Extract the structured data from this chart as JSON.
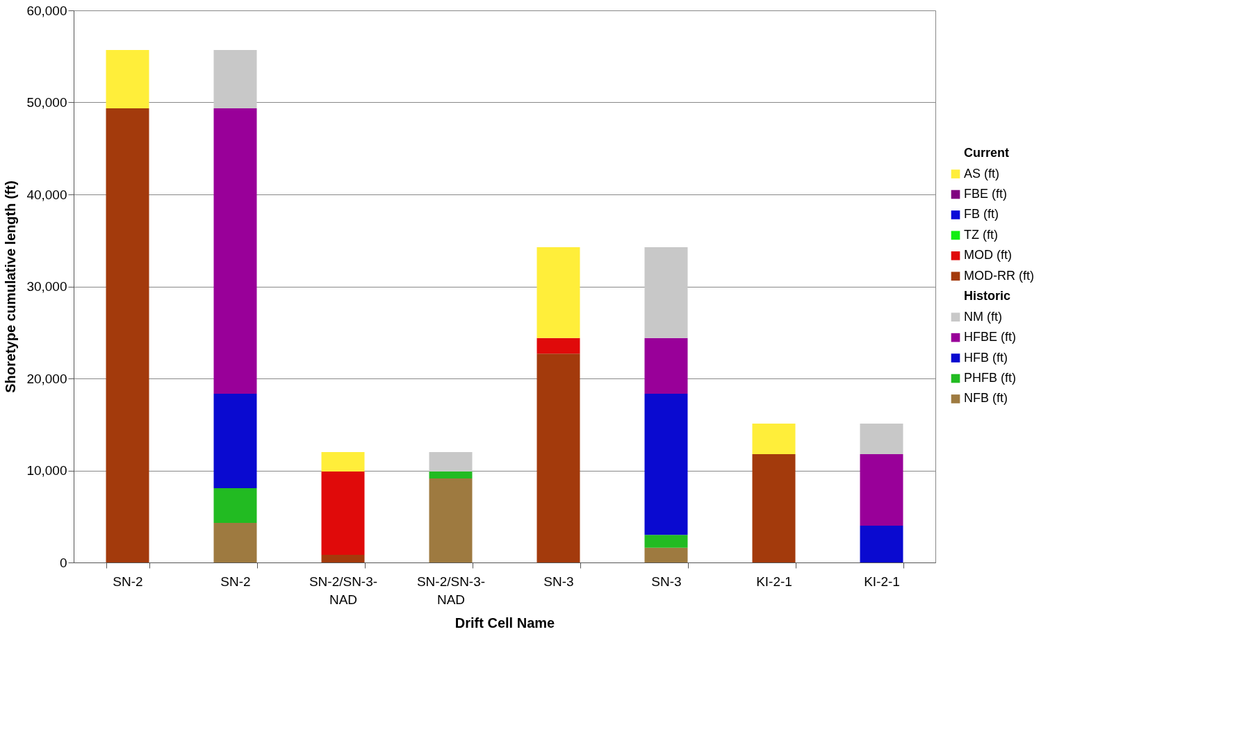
{
  "chart_data": {
    "type": "bar",
    "stacked": true,
    "xlabel": "Drift Cell Name",
    "ylabel": "Shoretype cumulative length (ft)",
    "categories": [
      "SN-2",
      "SN-2",
      "SN-2/SN-3-NAD",
      "SN-2/SN-3-NAD",
      "SN-3",
      "SN-3",
      "KI-2-1",
      "KI-2-1"
    ],
    "series": [
      {
        "name": "MOD-RR (ft)",
        "color": "#a33a0c",
        "values": [
          49350,
          null,
          830,
          null,
          22700,
          null,
          11770,
          null
        ]
      },
      {
        "name": "MOD (ft)",
        "color": "#e00a0a",
        "values": [
          null,
          null,
          9060,
          null,
          1700,
          null,
          null,
          null
        ]
      },
      {
        "name": "TZ (ft)",
        "color": "#11ee11",
        "values": [
          null,
          null,
          null,
          null,
          null,
          null,
          null,
          null
        ]
      },
      {
        "name": "FB (ft)",
        "color": "#0a0ad8",
        "values": [
          null,
          null,
          null,
          null,
          null,
          null,
          null,
          null
        ]
      },
      {
        "name": "FBE (ft)",
        "color": "#800080",
        "values": [
          null,
          null,
          null,
          null,
          null,
          null,
          null,
          null
        ]
      },
      {
        "name": "AS (ft)",
        "color": "#ffee3a",
        "values": [
          6350,
          null,
          2110,
          null,
          9860,
          null,
          3330,
          null
        ]
      },
      {
        "name": "NFB (ft)",
        "color": "#9e7a40",
        "values": [
          null,
          4300,
          null,
          9130,
          null,
          1600,
          null,
          null
        ]
      },
      {
        "name": "PHFB (ft)",
        "color": "#22bb22",
        "values": [
          null,
          3780,
          null,
          760,
          null,
          1400,
          null,
          null
        ]
      },
      {
        "name": "HFB (ft)",
        "color": "#0a0ad0",
        "values": [
          null,
          10260,
          null,
          null,
          null,
          15340,
          null,
          4000
        ]
      },
      {
        "name": "HFBE (ft)",
        "color": "#990099",
        "values": [
          null,
          31020,
          null,
          null,
          null,
          6060,
          null,
          7770
        ]
      },
      {
        "name": "NM (ft)",
        "color": "#c8c8c8",
        "values": [
          null,
          6340,
          null,
          2110,
          null,
          9860,
          null,
          3330
        ]
      }
    ],
    "ylim": [
      0,
      60000
    ],
    "yticks": [
      {
        "value": 0,
        "label": "0"
      },
      {
        "value": 10000,
        "label": "10,000"
      },
      {
        "value": 20000,
        "label": "20,000"
      },
      {
        "value": 30000,
        "label": "30,000"
      },
      {
        "value": 40000,
        "label": "40,000"
      },
      {
        "value": 50000,
        "label": "50,000"
      },
      {
        "value": 60000,
        "label": "60,000"
      }
    ],
    "grid": "y",
    "legend": "right",
    "legend_title": "Current",
    "annotations": [
      "Historic"
    ]
  }
}
